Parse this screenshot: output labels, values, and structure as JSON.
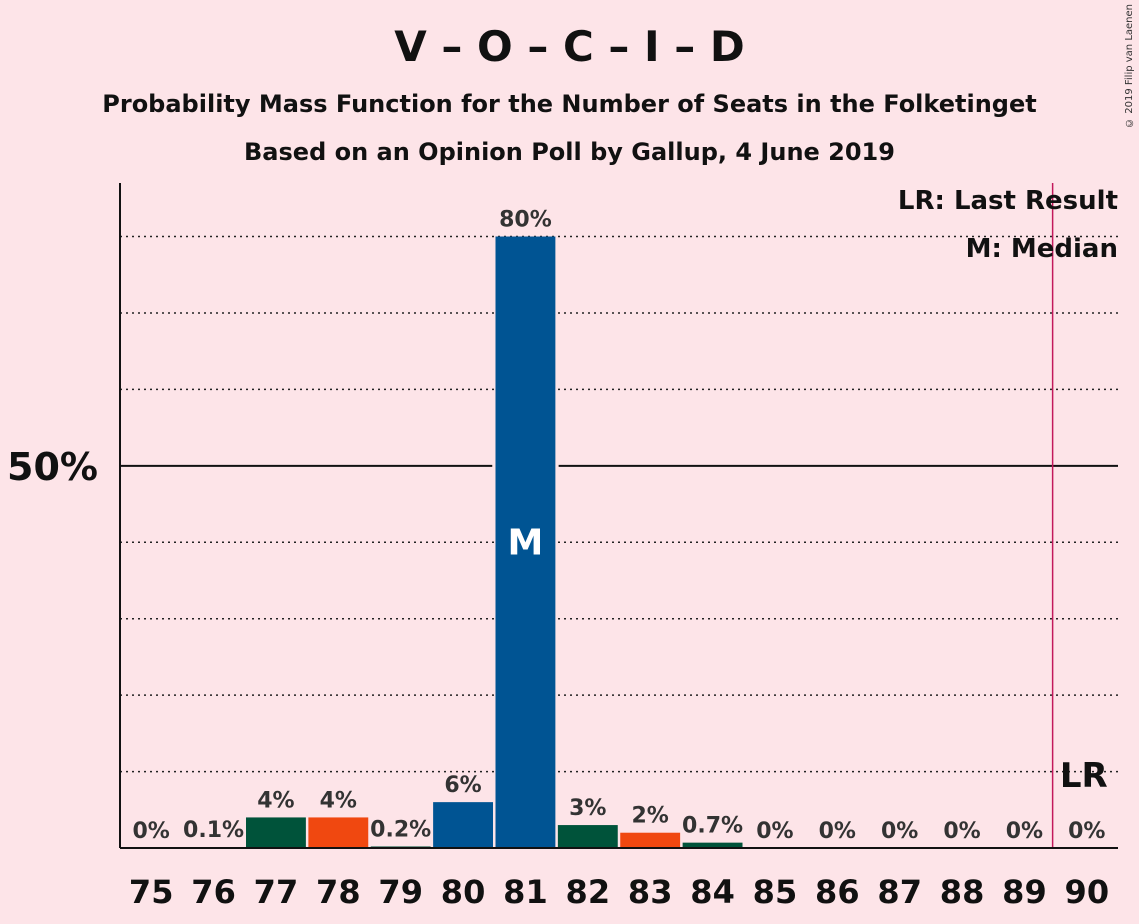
{
  "title": "V – O – C – I – D",
  "subtitle": "Probability Mass Function for the Number of Seats in the Folketinget",
  "subtitle2": "Based on an Opinion Poll by Gallup, 4 June 2019",
  "copyright": "© 2019 Filip van Laenen",
  "legend": {
    "lr": "LR: Last Result",
    "m": "M: Median"
  },
  "chart_data": {
    "type": "bar",
    "categories": [
      "75",
      "76",
      "77",
      "78",
      "79",
      "80",
      "81",
      "82",
      "83",
      "84",
      "85",
      "86",
      "87",
      "88",
      "89",
      "90"
    ],
    "values": [
      0,
      0.1,
      4,
      4,
      0.2,
      6,
      80,
      3,
      2,
      0.7,
      0,
      0,
      0,
      0,
      0,
      0
    ],
    "labels": [
      "0%",
      "0.1%",
      "4%",
      "4%",
      "0.2%",
      "6%",
      "80%",
      "3%",
      "2%",
      "0.7%",
      "0%",
      "0%",
      "0%",
      "0%",
      "0%",
      "0%"
    ],
    "colors": [
      "#00533a",
      "#00533a",
      "#00533a",
      "#f04810",
      "#00533a",
      "#005493",
      "#005493",
      "#00533a",
      "#f04810",
      "#00533a",
      "#00533a",
      "#00533a",
      "#00533a",
      "#00533a",
      "#00533a",
      "#00533a"
    ],
    "median_seat": "81",
    "median_label": "M",
    "last_result_seat": "90",
    "last_result_label": "LR",
    "ylim": [
      0,
      87
    ],
    "y_tick_label": "50%",
    "y_tick_value": 50,
    "gridlines": [
      10,
      20,
      30,
      40,
      60,
      70,
      80
    ],
    "grid": true,
    "accent_colors": {
      "lr_line": "#c2185b",
      "background": "#fde4e8"
    }
  }
}
